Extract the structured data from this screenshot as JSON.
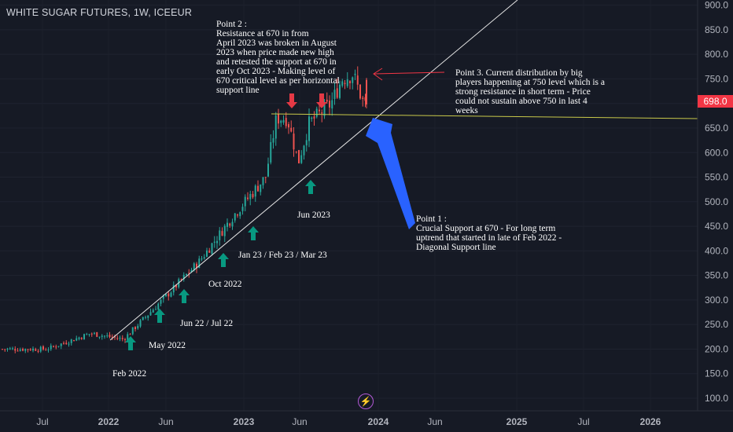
{
  "chart_data": {
    "type": "candlestick",
    "title": "WHITE SUGAR FUTURES, 1W, ICEEUR",
    "last_price": "698.0",
    "y_ticks": [
      "900.0",
      "850.0",
      "800.0",
      "750.0",
      "700.0",
      "650.0",
      "600.0",
      "550.0",
      "500.0",
      "450.0",
      "400.0",
      "350.0",
      "300.0",
      "250.0",
      "200.0",
      "150.0",
      "100.0"
    ],
    "x_ticks": [
      "Jul",
      "2022",
      "Jun",
      "2023",
      "Jun",
      "2024",
      "Jun",
      "2025",
      "Jul",
      "2026"
    ],
    "ylim": [
      85,
      910
    ],
    "key_points": [
      {
        "date": "2021-07",
        "price": 200
      },
      {
        "date": "2021-11",
        "price": 232
      },
      {
        "date": "2022-02",
        "price": 220
      },
      {
        "date": "2022-06",
        "price": 310
      },
      {
        "date": "2022-09",
        "price": 380
      },
      {
        "date": "2022-12",
        "price": 470
      },
      {
        "date": "2023-03",
        "price": 550
      },
      {
        "date": "2023-04",
        "price": 670
      },
      {
        "date": "2023-05",
        "price": 670
      },
      {
        "date": "2023-06",
        "price": 580
      },
      {
        "date": "2023-07",
        "price": 660
      },
      {
        "date": "2023-09",
        "price": 700
      },
      {
        "date": "2023-10",
        "price": 750
      },
      {
        "date": "2023-11",
        "price": 760
      },
      {
        "date": "2023-12",
        "price": 698
      }
    ],
    "support_horizontal": 670,
    "diagonal_support": [
      {
        "date": "2022-02",
        "price": 215
      },
      {
        "date": "2024-03",
        "price": 900
      }
    ]
  },
  "annotations": {
    "point2": "Point 2 :\nResistance at 670 in from\nApril 2023 was broken in August\n2023 when price made new high\nand retested the support at 670 in\nearly Oct 2023 - Making level of\n670 critical level as per horizontal\nsupport line",
    "point3": "Point 3. Current distribution by big\nplayers happening at 750 level which is a\nstrong resistance in short term - Price\ncould not sustain above 750 in last 4\nweeks",
    "point1": "Point 1 :\nCrucial Support at 670 - For long term\nuptrend that started in late of Feb 2022 -\nDiagonal Support line",
    "feb2022": "Feb 2022",
    "may2022": "May 2022",
    "jun_jul22": "Jun 22 / Jul 22",
    "oct2022": "Oct 2022",
    "jan_mar23": "Jan 23 / Feb 23 / Mar 23",
    "jun2023": "Jun 2023"
  },
  "colors": {
    "background": "#161a25",
    "up": "#26a69a",
    "down": "#ef5350",
    "diagonal": "#e6e6e6",
    "horizontal": "#c9c94a",
    "up_arrow": "#089981",
    "down_arrow": "#e53945",
    "big_arrow": "#2962ff"
  }
}
